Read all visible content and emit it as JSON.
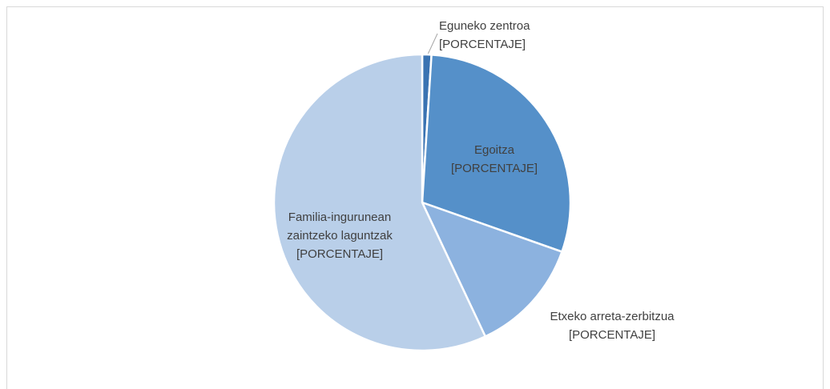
{
  "chart_data": {
    "type": "pie",
    "categories": [
      "Eguneko zentroa",
      "Egoitza",
      "Etxeko arreta-zerbitzua",
      "Familia-ingurunean zaintzeko laguntzak"
    ],
    "values": [
      1,
      29.4,
      12.6,
      57
    ],
    "value_labels": [
      "[PORCENTAJE]",
      "[PORCENTAJE]",
      "[PORCENTAJE]",
      "[PORCENTAJE]"
    ],
    "colors": [
      "#3a73b2",
      "#5590c9",
      "#8cb2df",
      "#b9cfe9"
    ]
  }
}
